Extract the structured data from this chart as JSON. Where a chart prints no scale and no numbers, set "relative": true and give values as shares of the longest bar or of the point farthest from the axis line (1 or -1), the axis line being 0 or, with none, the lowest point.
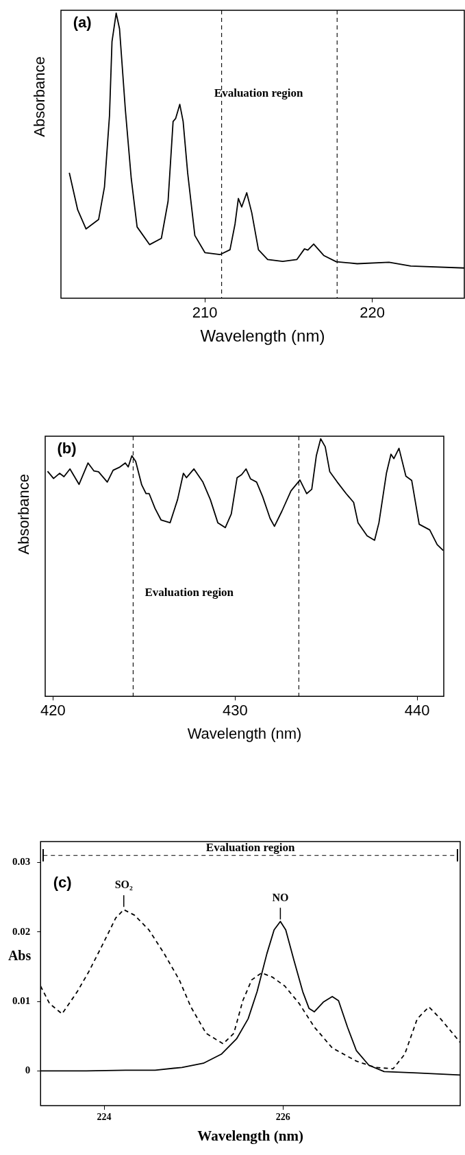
{
  "chart_data": [
    {
      "type": "line",
      "relative": true,
      "xlabel": "Wavelength (nm)",
      "ylabel": "Absorbance",
      "xlim": [
        201.4,
        225.5
      ],
      "xticks": [
        210,
        220
      ],
      "marker": "none",
      "annotations": [
        "(a)",
        "Evaluation region"
      ],
      "ref_lines": [
        {
          "axis": "x",
          "value": 211.0,
          "line_style": "dashed"
        },
        {
          "axis": "x",
          "value": 217.9,
          "line_style": "dashed"
        }
      ],
      "series": [
        {
          "color": "#000000",
          "x": [
            201.9,
            202.4,
            202.9,
            203.65,
            204.0,
            204.3,
            204.45,
            204.7,
            204.9,
            205.25,
            205.6,
            205.95,
            206.7,
            207.4,
            207.8,
            208.1,
            208.25,
            208.5,
            208.7,
            208.97,
            209.4,
            210.0,
            210.9,
            211.5,
            211.8,
            212.0,
            212.2,
            212.5,
            212.8,
            213.2,
            213.75,
            214.65,
            215.5,
            215.95,
            216.15,
            216.5,
            217.1,
            217.85,
            219.1,
            221.0,
            222.3,
            225.5
          ],
          "values": [
            0.44,
            0.31,
            0.243,
            0.276,
            0.39,
            0.64,
            0.9,
            1.0,
            0.945,
            0.66,
            0.42,
            0.25,
            0.188,
            0.21,
            0.34,
            0.62,
            0.63,
            0.68,
            0.62,
            0.44,
            0.22,
            0.16,
            0.153,
            0.17,
            0.26,
            0.35,
            0.32,
            0.37,
            0.3,
            0.17,
            0.136,
            0.129,
            0.136,
            0.173,
            0.169,
            0.19,
            0.15,
            0.128,
            0.121,
            0.126,
            0.113,
            0.106
          ]
        }
      ]
    },
    {
      "type": "line",
      "relative": true,
      "xlabel": "Wavelength (nm)",
      "ylabel": "Absorbance",
      "xlim": [
        419.57,
        441.46
      ],
      "xticks": [
        420,
        430,
        440
      ],
      "marker": "none",
      "annotations": [
        "(b)",
        "Evaluation region"
      ],
      "ref_lines": [
        {
          "axis": "x",
          "value": 424.4,
          "line_style": "dashed"
        },
        {
          "axis": "x",
          "value": 433.5,
          "line_style": "dashed"
        }
      ],
      "series": [
        {
          "color": "#000000",
          "x": [
            419.7,
            420.03,
            420.36,
            420.6,
            420.93,
            421.43,
            421.92,
            422.25,
            422.5,
            422.98,
            423.3,
            423.64,
            423.97,
            424.13,
            424.33,
            424.54,
            424.87,
            425.11,
            425.28,
            425.6,
            425.93,
            426.43,
            426.84,
            427.16,
            427.33,
            427.74,
            428.23,
            428.64,
            429.05,
            429.46,
            429.79,
            430.11,
            430.36,
            430.6,
            430.85,
            431.18,
            431.51,
            431.92,
            432.16,
            432.57,
            433.07,
            433.56,
            433.93,
            434.21,
            434.46,
            434.7,
            434.95,
            435.2,
            435.61,
            436.1,
            436.51,
            436.75,
            437.25,
            437.66,
            437.9,
            438.31,
            438.56,
            438.72,
            439.0,
            439.38,
            439.7,
            440.11,
            440.69,
            441.1,
            441.43
          ],
          "values": [
            0.874,
            0.846,
            0.866,
            0.853,
            0.883,
            0.823,
            0.906,
            0.875,
            0.872,
            0.832,
            0.878,
            0.889,
            0.906,
            0.891,
            0.934,
            0.912,
            0.821,
            0.787,
            0.787,
            0.73,
            0.685,
            0.674,
            0.764,
            0.866,
            0.849,
            0.883,
            0.832,
            0.764,
            0.674,
            0.655,
            0.708,
            0.849,
            0.861,
            0.883,
            0.844,
            0.832,
            0.776,
            0.691,
            0.66,
            0.719,
            0.798,
            0.84,
            0.787,
            0.804,
            0.934,
            1.0,
            0.969,
            0.872,
            0.832,
            0.787,
            0.753,
            0.674,
            0.623,
            0.606,
            0.674,
            0.866,
            0.94,
            0.923,
            0.963,
            0.855,
            0.838,
            0.668,
            0.646,
            0.589,
            0.566
          ]
        }
      ]
    },
    {
      "type": "line",
      "xlabel": "Wavelength (nm)",
      "ylabel": "Abs",
      "xlim": [
        223.29,
        227.98
      ],
      "xticks": [
        224,
        226
      ],
      "ylim": [
        -0.005,
        0.033
      ],
      "yticks": [
        0,
        0.01,
        0.02,
        0.03
      ],
      "marker": "none",
      "annotations": [
        "(c)",
        {
          "text": "SO₂",
          "x": 224.22,
          "y": 0.0233
        },
        {
          "text": "NO",
          "x": 225.97,
          "y": 0.0215
        }
      ],
      "ref_lines": [
        {
          "axis": "y",
          "value": 0.031,
          "label": "Evaluation region",
          "line_style": "dashed"
        }
      ],
      "series": [
        {
          "color": "#000000",
          "line_style": "solid",
          "x": [
            223.29,
            223.8,
            224.24,
            224.57,
            224.87,
            225.11,
            225.31,
            225.48,
            225.61,
            225.71,
            225.82,
            225.9,
            225.97,
            226.03,
            226.12,
            226.22,
            226.29,
            226.35,
            226.45,
            226.55,
            226.62,
            226.72,
            226.82,
            226.96,
            227.13,
            227.5,
            227.98
          ],
          "values": [
            0,
            0,
            0.0001,
            0.0001,
            0.0005,
            0.0011,
            0.0024,
            0.0046,
            0.0075,
            0.0114,
            0.0169,
            0.0203,
            0.0215,
            0.0203,
            0.016,
            0.0114,
            0.009,
            0.0085,
            0.0099,
            0.0107,
            0.0101,
            0.0063,
            0.0029,
            0.0008,
            -0.0001,
            -0.0003,
            -0.0006
          ]
        },
        {
          "color": "#000000",
          "line_style": "dashed",
          "x": [
            223.29,
            223.39,
            223.53,
            223.7,
            223.83,
            224.0,
            224.13,
            224.22,
            224.34,
            224.5,
            224.67,
            224.84,
            224.97,
            225.14,
            225.33,
            225.45,
            225.55,
            225.65,
            225.76,
            225.88,
            226.02,
            226.18,
            226.35,
            226.55,
            226.82,
            227.03,
            227.23,
            227.36,
            227.5,
            227.63,
            227.76,
            227.98
          ],
          "values": [
            0.0122,
            0.0097,
            0.0082,
            0.0114,
            0.0143,
            0.0186,
            0.022,
            0.0232,
            0.0224,
            0.0203,
            0.0169,
            0.0131,
            0.0092,
            0.0054,
            0.0039,
            0.0054,
            0.0101,
            0.0131,
            0.0141,
            0.0135,
            0.0122,
            0.0097,
            0.0063,
            0.0033,
            0.0014,
            0.0005,
            0.0003,
            0.0024,
            0.0075,
            0.0092,
            0.0075,
            0.0041
          ]
        }
      ]
    }
  ]
}
